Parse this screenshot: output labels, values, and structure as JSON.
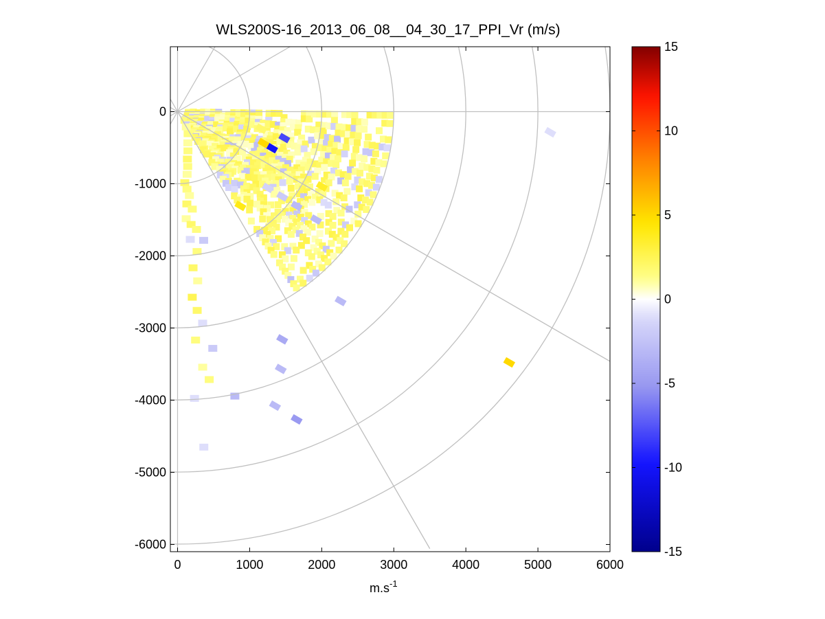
{
  "chart_data": {
    "type": "heatmap",
    "subtype": "polar-ppi-scan",
    "title": "WLS200S-16_2013_06_08__04_30_17_PPI_Vr (m/s)",
    "xlabel_base": "m.s",
    "xlabel_sup": "-1",
    "ylabel": "",
    "xlim": [
      -100,
      6000
    ],
    "ylim": [
      -6100,
      900
    ],
    "x_ticks": [
      "0",
      "1000",
      "2000",
      "3000",
      "4000",
      "5000",
      "6000"
    ],
    "x_tick_values": [
      0,
      1000,
      2000,
      3000,
      4000,
      5000,
      6000
    ],
    "y_ticks": [
      "0",
      "-1000",
      "-2000",
      "-3000",
      "-4000",
      "-5000",
      "-6000"
    ],
    "y_tick_values": [
      0,
      -1000,
      -2000,
      -3000,
      -4000,
      -5000,
      -6000
    ],
    "grid": true,
    "polar_grid": {
      "center": [
        0,
        0
      ],
      "range_rings": [
        1000,
        2000,
        3000,
        4000,
        5000,
        6000
      ],
      "spoke_angles_deg": [
        0,
        -30,
        -60,
        30,
        60,
        90,
        120,
        150,
        180,
        210,
        240,
        270,
        300,
        330
      ]
    },
    "colorbar": {
      "label_ticks": [
        "15",
        "10",
        "5",
        "0",
        "-5",
        "-10",
        "-15"
      ],
      "tick_values": [
        15,
        10,
        5,
        0,
        -5,
        -10,
        -15
      ],
      "range": [
        -15,
        15
      ],
      "levels": 64,
      "colormap": "blue-white-yellow-red"
    },
    "series_cells": [
      {
        "r": 300,
        "az": 135,
        "v": 1
      },
      {
        "r": 400,
        "az": 140,
        "v": 1.5
      },
      {
        "r": 500,
        "az": 150,
        "v": 1
      },
      {
        "r": 600,
        "az": 155,
        "v": 1.5
      },
      {
        "r": 700,
        "az": 160,
        "v": 2
      },
      {
        "r": 800,
        "az": 162,
        "v": 1.5
      },
      {
        "r": 900,
        "az": 165,
        "v": 1
      },
      {
        "r": 1000,
        "az": 170,
        "v": 2
      },
      {
        "r": 1100,
        "az": 168,
        "v": 1.5
      },
      {
        "r": 1200,
        "az": 166,
        "v": 1
      },
      {
        "r": 1300,
        "az": 170,
        "v": 2
      },
      {
        "r": 1400,
        "az": 165,
        "v": 1.5
      },
      {
        "r": 1500,
        "az": 172,
        "v": 1
      },
      {
        "r": 1600,
        "az": 168,
        "v": 2
      },
      {
        "r": 1700,
        "az": 164,
        "v": 1.5
      },
      {
        "r": 1800,
        "az": 170,
        "v": -1
      },
      {
        "r": 1900,
        "az": 160,
        "v": -2
      },
      {
        "r": 2000,
        "az": 166,
        "v": 1.5
      },
      {
        "r": 2200,
        "az": 170,
        "v": 2
      },
      {
        "r": 2400,
        "az": 168,
        "v": 1
      },
      {
        "r": 2600,
        "az": 172,
        "v": 2.5
      },
      {
        "r": 2800,
        "az": 170,
        "v": 2
      },
      {
        "r": 3000,
        "az": 168,
        "v": -1
      },
      {
        "r": 3200,
        "az": 172,
        "v": 1.5
      },
      {
        "r": 3400,
        "az": 165,
        "v": -2
      },
      {
        "r": 3600,
        "az": 170,
        "v": 1
      },
      {
        "r": 3800,
        "az": 168,
        "v": 1.5
      },
      {
        "r": 4000,
        "az": 174,
        "v": -1
      },
      {
        "r": 4200,
        "az": 160,
        "v": -3
      },
      {
        "r": 4700,
        "az": 172,
        "v": -1
      }
    ],
    "isolated_cells": [
      {
        "x": 2000,
        "y": -1030,
        "v": 3.5
      },
      {
        "x": 2260,
        "y": -2620,
        "v": -3
      },
      {
        "x": 4600,
        "y": -3470,
        "v": 5
      },
      {
        "x": 5170,
        "y": -280,
        "v": -1
      },
      {
        "x": 1650,
        "y": -4260,
        "v": -5
      },
      {
        "x": 1350,
        "y": -4070,
        "v": -3
      },
      {
        "x": 1430,
        "y": -3560,
        "v": -3
      },
      {
        "x": 1450,
        "y": -3150,
        "v": -4
      },
      {
        "x": 1920,
        "y": -1490,
        "v": -3
      },
      {
        "x": 1650,
        "y": -1300,
        "v": -3
      },
      {
        "x": 1450,
        "y": -1170,
        "v": -2
      },
      {
        "x": 1250,
        "y": -1050,
        "v": -1.5
      },
      {
        "x": 1480,
        "y": -360,
        "v": -8
      },
      {
        "x": 1310,
        "y": -500,
        "v": -10
      },
      {
        "x": 1190,
        "y": -430,
        "v": 5
      },
      {
        "x": 1160,
        "y": -230,
        "v": 2
      },
      {
        "x": 870,
        "y": -1300,
        "v": 4
      }
    ]
  }
}
